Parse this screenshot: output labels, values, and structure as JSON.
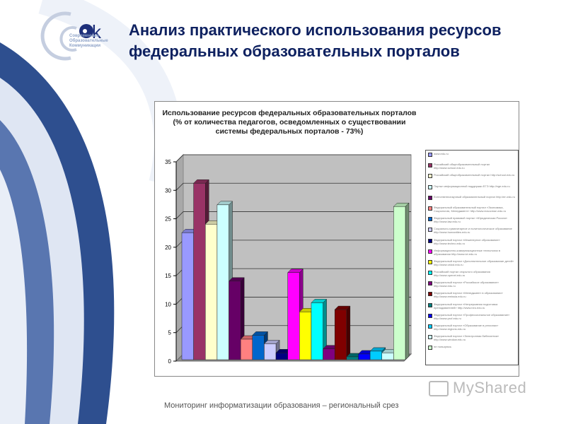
{
  "logo": {
    "mark": "ok",
    "text": "Современные Образовательные Коммуникации"
  },
  "slide_title": "Анализ практического использования ресурсов федеральных образовательных порталов",
  "footer": "Мониторинг информатизации образования – региональный срез",
  "watermark": "MyShared",
  "chart_data": {
    "type": "bar",
    "style": "3d-column",
    "title_lines": [
      "Использование ресурсов федеральных образовательных порталов",
      "(% от количества педагогов, осведомленных о существовании",
      "системы федеральных порталов - 73%)"
    ],
    "ylim": [
      0,
      35
    ],
    "yticks": [
      0,
      5,
      10,
      15,
      20,
      25,
      30,
      35
    ],
    "grid": true,
    "legend_position": "right",
    "series": [
      {
        "name": "www.edu.ru",
        "value": 22.3,
        "color": "#9999ff"
      },
      {
        "name": "Российский общеобразовательный портал http://www.school.edu.ru",
        "value": 31.0,
        "color": "#993366"
      },
      {
        "name": "Российский общеобразовательный портал http://school.edu.ru",
        "value": 23.8,
        "color": "#ffffcc"
      },
      {
        "name": "Портал информационной поддержки ЕГЭ http://ege.edu.ru",
        "value": 27.2,
        "color": "#ccffff"
      },
      {
        "name": "Естественнонаучный образовательный портал http://en.edu.ru",
        "value": 13.8,
        "color": "#660066"
      },
      {
        "name": "Федеральный образовательный портал «Экономика, Социология, Менеджмент» http://www.ecsocman.edu.ru",
        "value": 3.6,
        "color": "#ff8080"
      },
      {
        "name": "Федеральный правовой портал «Юридическая Россия» http://www.law.edu.ru",
        "value": 4.3,
        "color": "#0066cc"
      },
      {
        "name": "Социально-гуманитарное и политологическое образование http://www.humanities.edu.ru",
        "value": 2.8,
        "color": "#ccccff"
      },
      {
        "name": "Федеральный портал «Инженерное образование» http://www.techno.edu.ru",
        "value": 1.2,
        "color": "#000080"
      },
      {
        "name": "Информационно-коммуникационные технологии в образовании http://www.ict.edu.ru",
        "value": 15.3,
        "color": "#ff00ff"
      },
      {
        "name": "Федеральный портал «Дополнительное образование детей» http://www.vidod.edu.ru",
        "value": 8.4,
        "color": "#ffff00"
      },
      {
        "name": "Российский портал открытого образования http://www.openet.edu.ru",
        "value": 10.0,
        "color": "#00ffff"
      },
      {
        "name": "Федеральный портал «Российское образование» http://www.edu.ru",
        "value": 1.9,
        "color": "#800080"
      },
      {
        "name": "Федеральный портал «Менеджмент в образовании» http://www.emissia.edu.ru",
        "value": 8.8,
        "color": "#800000"
      },
      {
        "name": "Федеральный портал «Непрерывная подготовка преподавателей» http://www.neo.edu.ru",
        "value": 0.5,
        "color": "#008080"
      },
      {
        "name": "Федеральный портал «Профессиональное образование» http://www.prof.edu.ru",
        "value": 1.0,
        "color": "#0000ff"
      },
      {
        "name": "Федеральный портал «Образование в регионах» http://www.regions.edu.ru",
        "value": 1.5,
        "color": "#00ccff"
      },
      {
        "name": "Федеральный портал «Электронная библиотека» http://www.window.edu.ru",
        "value": 1.2,
        "color": "#ccffff"
      },
      {
        "name": "не пользуюсь",
        "value": 26.9,
        "color": "#ccffcc"
      }
    ]
  }
}
